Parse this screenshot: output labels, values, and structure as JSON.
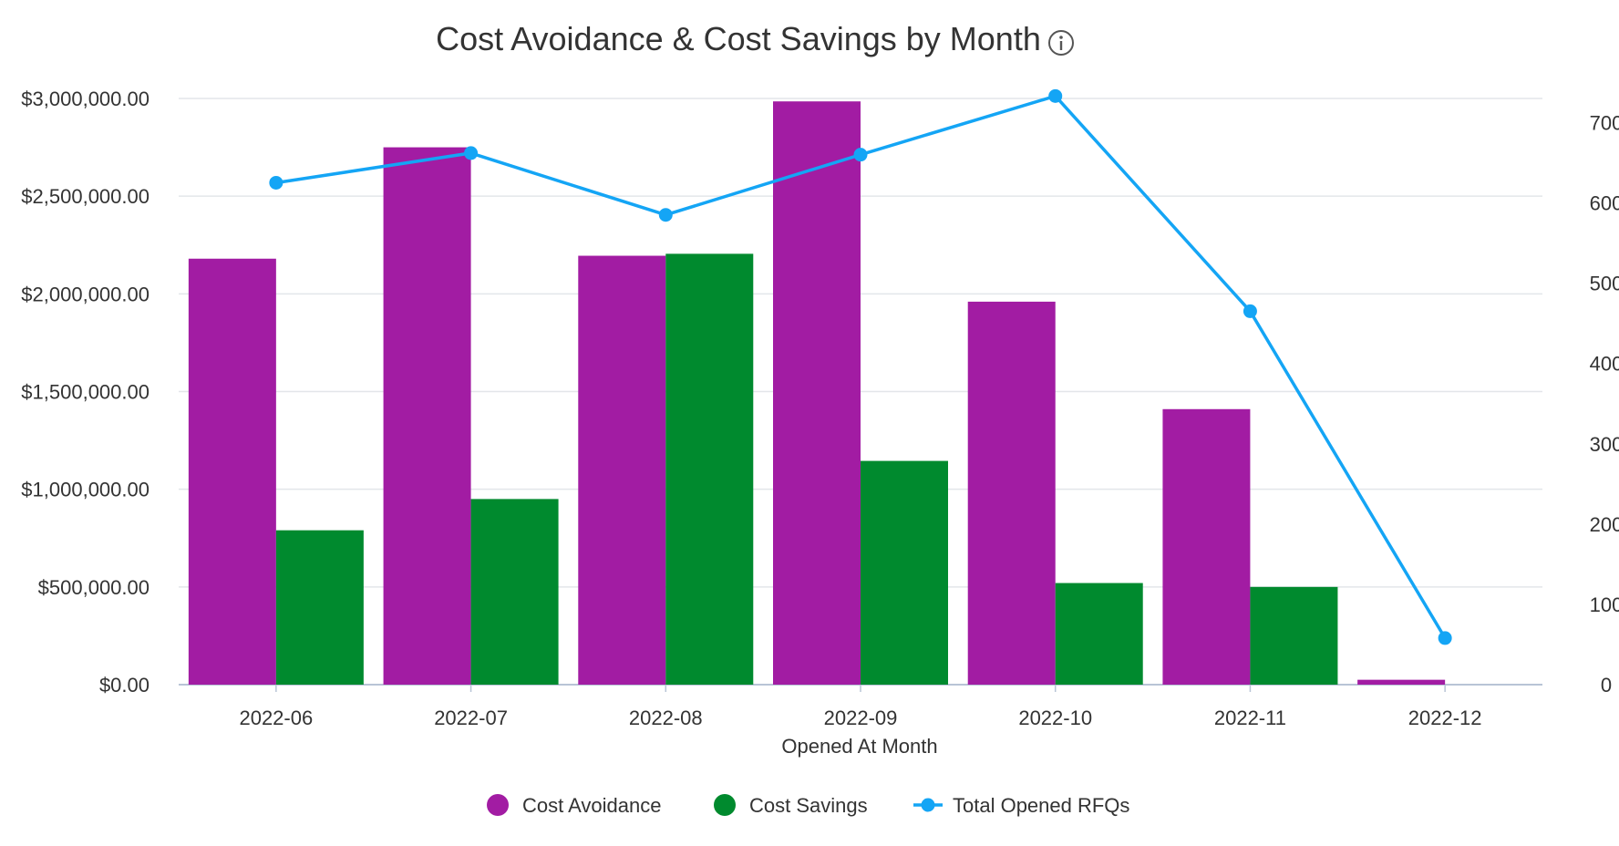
{
  "chart_data": {
    "type": "bar",
    "title": "Cost Avoidance & Cost Savings by Month",
    "xlabel": "Opened At Month",
    "ylabel": "",
    "y2label": "",
    "categories": [
      "2022-06",
      "2022-07",
      "2022-08",
      "2022-09",
      "2022-10",
      "2022-11",
      "2022-12"
    ],
    "series": [
      {
        "name": "Cost Avoidance",
        "type": "bar",
        "axis": "left",
        "color": "#a21ca3",
        "values": [
          2180000,
          2750000,
          2195000,
          2985000,
          1960000,
          1410000,
          25000
        ]
      },
      {
        "name": "Cost Savings",
        "type": "bar",
        "axis": "left",
        "color": "#008a2e",
        "values": [
          790000,
          950000,
          2205000,
          1145000,
          520000,
          500000,
          0
        ]
      },
      {
        "name": "Total Opened RFQs",
        "type": "line",
        "axis": "right",
        "color": "#14a5f5",
        "values": [
          625,
          662,
          585,
          660,
          733,
          465,
          58
        ]
      }
    ],
    "ylim": [
      0,
      3000000
    ],
    "y2lim": [
      0,
      730
    ],
    "yticks": [
      "$0.00",
      "$500,000.00",
      "$1,000,000.00",
      "$1,500,000.00",
      "$2,000,000.00",
      "$2,500,000.00",
      "$3,000,000.00"
    ],
    "yticks_values": [
      0,
      500000,
      1000000,
      1500000,
      2000000,
      2500000,
      3000000
    ],
    "y2ticks": [
      "0",
      "100",
      "200",
      "300",
      "400",
      "500",
      "600",
      "700"
    ],
    "y2ticks_values": [
      0,
      100,
      200,
      300,
      400,
      500,
      600,
      700
    ],
    "grid": true,
    "legend_position": "bottom"
  }
}
